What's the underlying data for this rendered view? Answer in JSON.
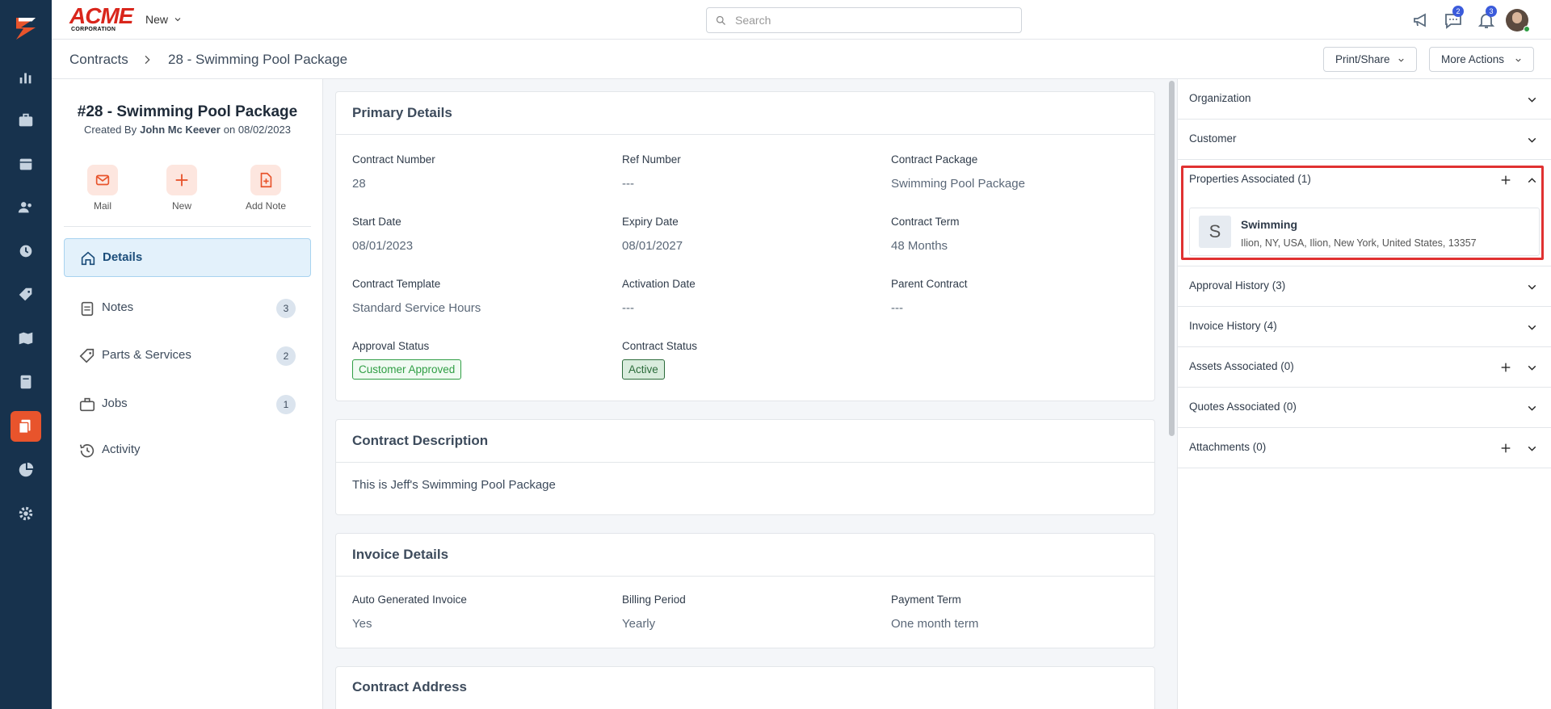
{
  "header": {
    "logo": {
      "brand": "ACME",
      "tagline": "CORPORATION"
    },
    "new_menu": "New",
    "search_placeholder": "Search",
    "messages_badge": 2,
    "notifications_badge": 3
  },
  "breadcrumb": {
    "items": [
      "Contracts",
      "28 - Swimming Pool Package"
    ],
    "actions": [
      "Print/Share",
      "More Actions"
    ]
  },
  "summary": {
    "title": "#28 - Swimming Pool Package",
    "created_label": "Created By",
    "author": "John Mc Keever",
    "date": "on 08/02/2023",
    "quick_actions": [
      "Mail",
      "New",
      "Add Note"
    ]
  },
  "nav": [
    {
      "label": "Details"
    },
    {
      "label": "Notes",
      "count": 3
    },
    {
      "label": "Parts & Services",
      "count": 2
    },
    {
      "label": "Jobs",
      "count": 1
    },
    {
      "label": "Activity"
    }
  ],
  "primary_details": {
    "title": "Primary Details",
    "fields": [
      {
        "label": "Contract Number",
        "value": 28
      },
      {
        "label": "Ref Number",
        "value": "---"
      },
      {
        "label": "Contract Package",
        "value": "Swimming Pool Package"
      },
      {
        "label": "Start Date",
        "value": "08/01/2023"
      },
      {
        "label": "Expiry Date",
        "value": "08/01/2027"
      },
      {
        "label": "Contract Term",
        "value": "48 Months"
      },
      {
        "label": "Contract Template",
        "value": "Standard Service Hours"
      },
      {
        "label": "Activation Date",
        "value": "---"
      },
      {
        "label": "Parent Contract",
        "value": "---"
      }
    ],
    "statuses": [
      {
        "label": "Approval Status",
        "value": "Customer Approved",
        "color": "#2f9e44"
      },
      {
        "label": "Contract Status",
        "value": "Active",
        "color": "#2b6b3a"
      }
    ]
  },
  "contract_description": {
    "title": "Contract Description",
    "text": "This is Jeff's Swimming Pool Package"
  },
  "invoice_details": {
    "title": "Invoice Details",
    "fields": [
      {
        "label": "Auto Generated Invoice",
        "value": "Yes"
      },
      {
        "label": "Billing Period",
        "value": "Yearly"
      },
      {
        "label": "Payment Term",
        "value": "One month term"
      }
    ]
  },
  "contract_address": {
    "title": "Contract Address"
  },
  "side_panel": {
    "sections": [
      {
        "title": "Organization"
      },
      {
        "title": "Customer"
      },
      {
        "title": "Properties Associated (1)",
        "add_button": true,
        "expanded": true,
        "items": [
          {
            "initial": "S",
            "name": "Swimming",
            "address": "Ilion, NY, USA, Ilion, New York, United States, 13357"
          }
        ]
      },
      {
        "title": "Approval History (3)"
      },
      {
        "title": "Invoice History (4)"
      },
      {
        "title": "Assets Associated (0)",
        "add_button": true
      },
      {
        "title": "Quotes Associated (0)"
      },
      {
        "title": "Attachments (0)",
        "add_button": true
      }
    ]
  }
}
